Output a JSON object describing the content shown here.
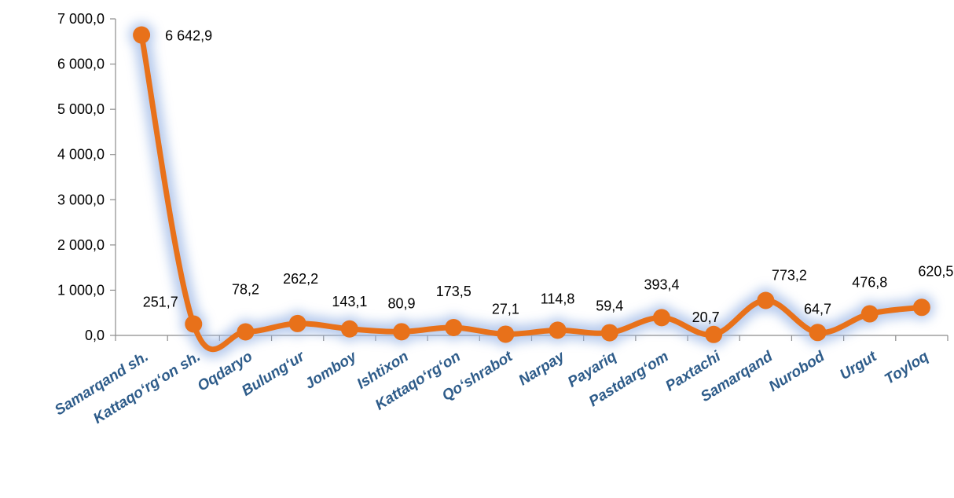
{
  "chart_data": {
    "type": "line",
    "categories": [
      "Samarqand sh.",
      "Kattaqo‘rg‘on  sh.",
      "Oqdaryo",
      "Bulung‘ur",
      "Jomboy",
      "Ishtixon",
      "Kattaqo‘rg‘on",
      "Qo‘shrabot",
      "Narpay",
      "Payariq",
      "Pastdarg‘om",
      "Paxtachi",
      "Samarqand",
      "Nurobod",
      "Urgut",
      "Toyloq"
    ],
    "values": [
      6642.9,
      251.7,
      78.2,
      262.2,
      143.1,
      80.9,
      173.5,
      27.1,
      114.8,
      59.4,
      393.4,
      20.7,
      773.2,
      64.7,
      476.8,
      620.5
    ],
    "data_labels": [
      "6 642,9",
      "251,7",
      "78,2",
      "262,2",
      "143,1",
      "80,9",
      "173,5",
      "27,1",
      "114,8",
      "59,4",
      "393,4",
      "20,7",
      "773,2",
      "64,7",
      "476,8",
      "620,5"
    ],
    "ylim": [
      0,
      7000
    ],
    "yticks": [
      0,
      1000,
      2000,
      3000,
      4000,
      5000,
      6000,
      7000
    ],
    "ytick_labels": [
      "0,0",
      "1 000,0",
      "2 000,0",
      "3 000,0",
      "4 000,0",
      "5 000,0",
      "6 000,0",
      "7 000,0"
    ],
    "title": "",
    "xlabel": "",
    "ylabel": "",
    "grid": false,
    "legend": "none",
    "colors": {
      "line": "#E8711A",
      "glow": "#9DB8E6",
      "axis": "#8C8C8C",
      "category_text": "#2E5C8A"
    }
  }
}
